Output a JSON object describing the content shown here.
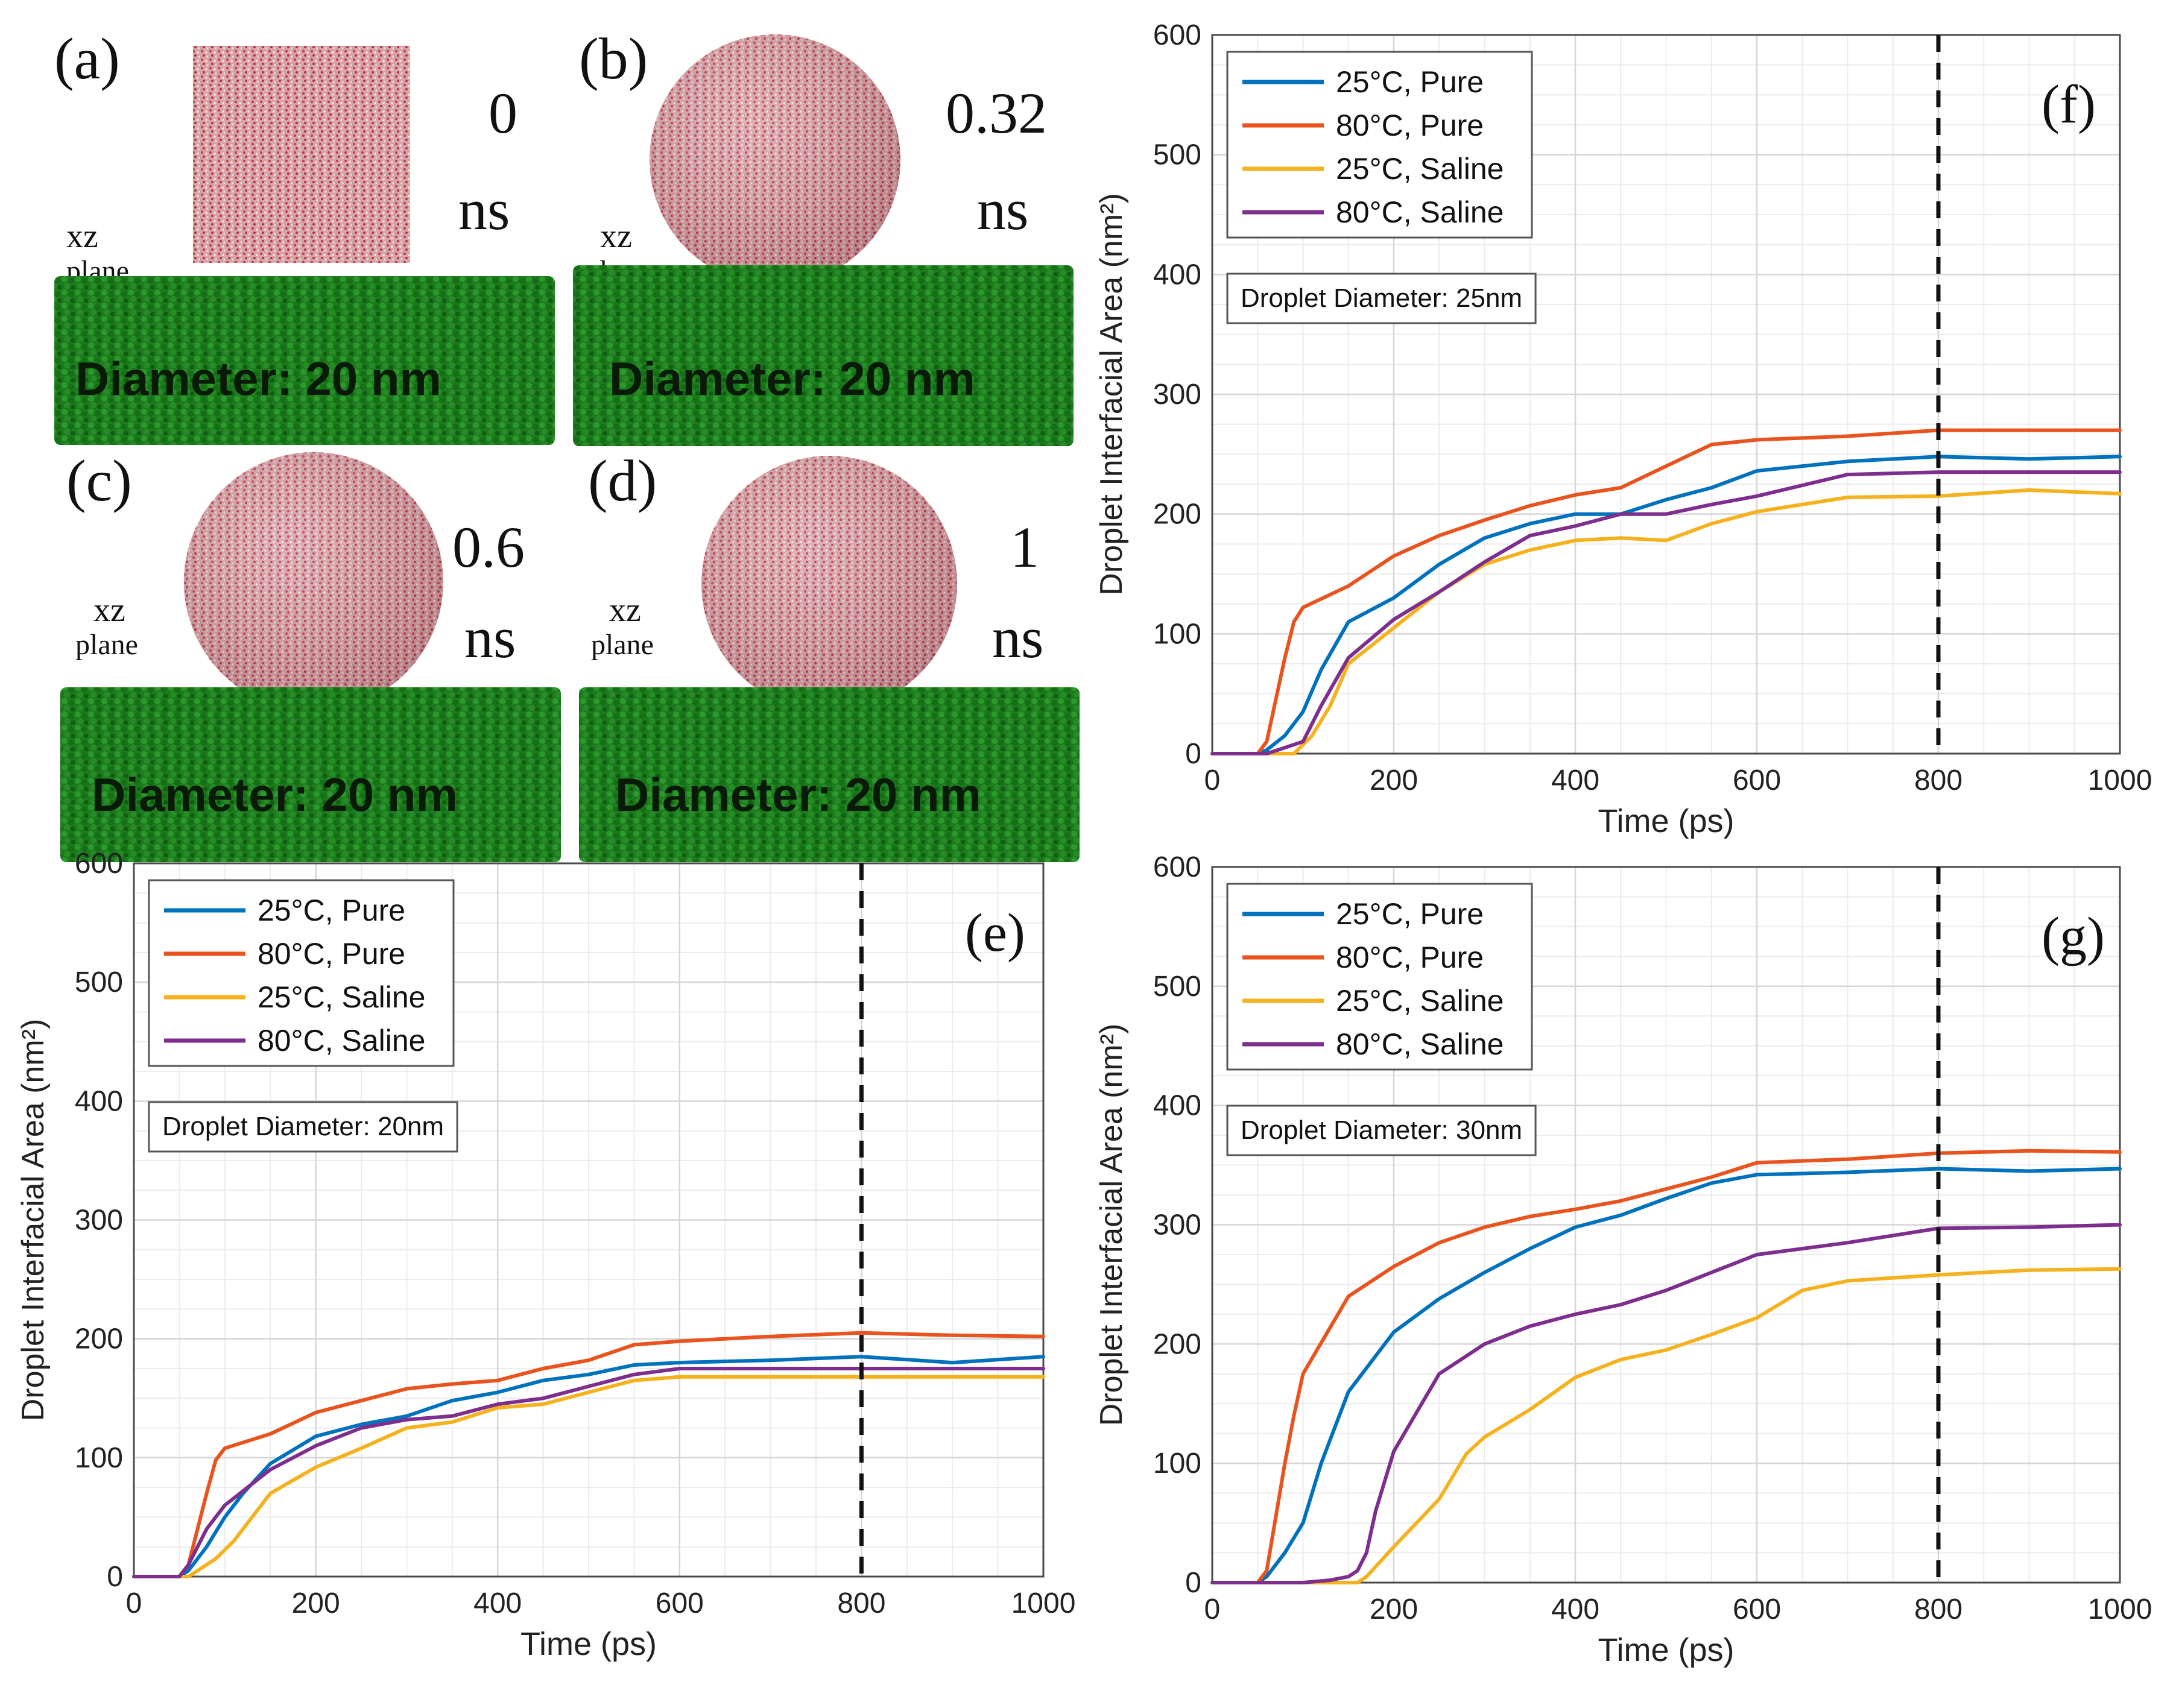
{
  "simulations": [
    {
      "letter": "(a)",
      "time_value": "0",
      "time_unit": "ns",
      "plane_xz": "xz",
      "plane_word": "plane",
      "slab_label": "Diameter: 20 nm",
      "shape": "cube"
    },
    {
      "letter": "(b)",
      "time_value": "0.32",
      "time_unit": "ns",
      "plane_xz": "xz",
      "plane_word": "plane",
      "slab_label": "Diameter: 20 nm",
      "shape": "sphere"
    },
    {
      "letter": "(c)",
      "time_value": "0.6",
      "time_unit": "ns",
      "plane_xz": "xz",
      "plane_word": "plane",
      "slab_label": "Diameter: 20 nm",
      "shape": "sphere"
    },
    {
      "letter": "(d)",
      "time_value": "1",
      "time_unit": "ns",
      "plane_xz": "xz",
      "plane_word": "plane",
      "slab_label": "Diameter: 20 nm",
      "shape": "sphere"
    }
  ],
  "colors": {
    "pure25": "#0072BD",
    "pure80": "#E8531E",
    "saline25": "#F5B21E",
    "saline80": "#7E2F8E",
    "substrate": "#1f7a1f",
    "droplet": "#c97a82"
  },
  "chart_data": [
    {
      "panel": "(e)",
      "type": "line",
      "annotation": "Droplet Diameter: 20nm",
      "xlabel": "Time (ps)",
      "ylabel": "Droplet Interfacial Area (nm²)",
      "xlim": [
        0,
        1000
      ],
      "ylim": [
        0,
        600
      ],
      "xticks": [
        0,
        200,
        400,
        600,
        800,
        1000
      ],
      "yticks": [
        0,
        100,
        200,
        300,
        400,
        500,
        600
      ],
      "vline": 800,
      "legend_position": "top-left",
      "series": [
        {
          "name": "25°C, Pure",
          "color_key": "pure25",
          "x": [
            0,
            50,
            60,
            80,
            100,
            120,
            150,
            200,
            250,
            300,
            350,
            400,
            450,
            500,
            550,
            600,
            700,
            800,
            900,
            1000
          ],
          "y": [
            0,
            0,
            5,
            25,
            50,
            70,
            95,
            118,
            128,
            135,
            148,
            155,
            165,
            170,
            178,
            180,
            182,
            185,
            180,
            185
          ]
        },
        {
          "name": "80°C, Pure",
          "color_key": "pure80",
          "x": [
            0,
            50,
            60,
            80,
            90,
            100,
            150,
            200,
            250,
            300,
            350,
            400,
            450,
            500,
            550,
            600,
            700,
            800,
            900,
            1000
          ],
          "y": [
            0,
            0,
            10,
            70,
            98,
            108,
            120,
            138,
            148,
            158,
            162,
            165,
            175,
            182,
            195,
            198,
            202,
            205,
            203,
            202
          ]
        },
        {
          "name": "25°C, Saline",
          "color_key": "saline25",
          "x": [
            0,
            60,
            70,
            90,
            110,
            130,
            150,
            200,
            250,
            300,
            350,
            400,
            450,
            500,
            550,
            600,
            700,
            800,
            900,
            1000
          ],
          "y": [
            0,
            0,
            5,
            15,
            30,
            50,
            70,
            92,
            108,
            125,
            130,
            142,
            145,
            155,
            165,
            168,
            168,
            168,
            168,
            168
          ]
        },
        {
          "name": "80°C, Saline",
          "color_key": "saline80",
          "x": [
            0,
            50,
            60,
            80,
            100,
            120,
            150,
            200,
            250,
            300,
            350,
            400,
            450,
            500,
            550,
            600,
            700,
            800,
            900,
            1000
          ],
          "y": [
            0,
            0,
            10,
            40,
            60,
            72,
            90,
            110,
            125,
            132,
            135,
            145,
            150,
            160,
            170,
            175,
            175,
            175,
            175,
            175
          ]
        }
      ]
    },
    {
      "panel": "(f)",
      "type": "line",
      "annotation": "Droplet Diameter: 25nm",
      "xlabel": "Time (ps)",
      "ylabel": "Droplet Interfacial Area (nm²)",
      "xlim": [
        0,
        1000
      ],
      "ylim": [
        0,
        600
      ],
      "xticks": [
        0,
        200,
        400,
        600,
        800,
        1000
      ],
      "yticks": [
        0,
        100,
        200,
        300,
        400,
        500,
        600
      ],
      "vline": 800,
      "legend_position": "top-left",
      "series": [
        {
          "name": "25°C, Pure",
          "color_key": "pure25",
          "x": [
            0,
            50,
            60,
            80,
            100,
            120,
            150,
            200,
            250,
            300,
            350,
            400,
            450,
            500,
            550,
            600,
            700,
            800,
            900,
            1000
          ],
          "y": [
            0,
            0,
            3,
            15,
            35,
            70,
            110,
            130,
            158,
            180,
            192,
            200,
            200,
            212,
            222,
            236,
            244,
            248,
            246,
            248
          ]
        },
        {
          "name": "80°C, Pure",
          "color_key": "pure80",
          "x": [
            0,
            50,
            60,
            80,
            90,
            100,
            150,
            200,
            250,
            300,
            350,
            400,
            450,
            500,
            550,
            600,
            700,
            800,
            900,
            1000
          ],
          "y": [
            0,
            0,
            10,
            80,
            110,
            122,
            140,
            165,
            182,
            195,
            207,
            216,
            222,
            240,
            258,
            262,
            265,
            270,
            270,
            270
          ]
        },
        {
          "name": "25°C, Saline",
          "color_key": "saline25",
          "x": [
            0,
            60,
            70,
            90,
            110,
            130,
            150,
            200,
            250,
            300,
            350,
            400,
            450,
            500,
            550,
            600,
            700,
            800,
            900,
            1000
          ],
          "y": [
            0,
            0,
            0,
            0,
            15,
            40,
            75,
            105,
            135,
            158,
            170,
            178,
            180,
            178,
            192,
            202,
            214,
            215,
            220,
            217
          ]
        },
        {
          "name": "80°C, Saline",
          "color_key": "saline80",
          "x": [
            0,
            50,
            60,
            80,
            100,
            120,
            150,
            200,
            250,
            300,
            350,
            400,
            450,
            500,
            550,
            600,
            700,
            800,
            900,
            1000
          ],
          "y": [
            0,
            0,
            0,
            5,
            10,
            40,
            80,
            112,
            135,
            160,
            182,
            190,
            200,
            200,
            208,
            215,
            233,
            235,
            235,
            235
          ]
        }
      ]
    },
    {
      "panel": "(g)",
      "type": "line",
      "annotation": "Droplet Diameter: 30nm",
      "xlabel": "Time (ps)",
      "ylabel": "Droplet Interfacial Area (nm²)",
      "xlim": [
        0,
        1000
      ],
      "ylim": [
        0,
        600
      ],
      "xticks": [
        0,
        200,
        400,
        600,
        800,
        1000
      ],
      "yticks": [
        0,
        100,
        200,
        300,
        400,
        500,
        600
      ],
      "vline": 800,
      "legend_position": "top-left",
      "series": [
        {
          "name": "25°C, Pure",
          "color_key": "pure25",
          "x": [
            0,
            50,
            60,
            80,
            100,
            120,
            150,
            200,
            250,
            300,
            350,
            400,
            450,
            500,
            550,
            600,
            700,
            800,
            900,
            1000
          ],
          "y": [
            0,
            0,
            5,
            25,
            50,
            100,
            160,
            210,
            238,
            260,
            280,
            298,
            308,
            322,
            335,
            342,
            344,
            347,
            345,
            347
          ]
        },
        {
          "name": "80°C, Pure",
          "color_key": "pure80",
          "x": [
            0,
            50,
            60,
            80,
            90,
            100,
            150,
            200,
            250,
            300,
            350,
            400,
            450,
            500,
            550,
            600,
            700,
            800,
            900,
            1000
          ],
          "y": [
            0,
            0,
            10,
            100,
            140,
            175,
            240,
            265,
            285,
            298,
            307,
            313,
            320,
            330,
            340,
            352,
            355,
            360,
            362,
            361
          ]
        },
        {
          "name": "25°C, Saline",
          "color_key": "saline25",
          "x": [
            0,
            140,
            150,
            160,
            170,
            200,
            250,
            280,
            300,
            350,
            400,
            450,
            500,
            550,
            600,
            650,
            700,
            800,
            900,
            1000
          ],
          "y": [
            0,
            0,
            0,
            0,
            5,
            30,
            70,
            108,
            122,
            145,
            172,
            187,
            195,
            208,
            222,
            245,
            253,
            258,
            262,
            263
          ]
        },
        {
          "name": "80°C, Saline",
          "color_key": "saline80",
          "x": [
            0,
            100,
            130,
            150,
            160,
            170,
            180,
            200,
            250,
            300,
            350,
            400,
            450,
            500,
            550,
            600,
            700,
            800,
            900,
            1000
          ],
          "y": [
            0,
            0,
            2,
            5,
            10,
            25,
            60,
            110,
            175,
            200,
            215,
            225,
            233,
            245,
            260,
            275,
            285,
            297,
            298,
            300
          ]
        }
      ]
    }
  ]
}
